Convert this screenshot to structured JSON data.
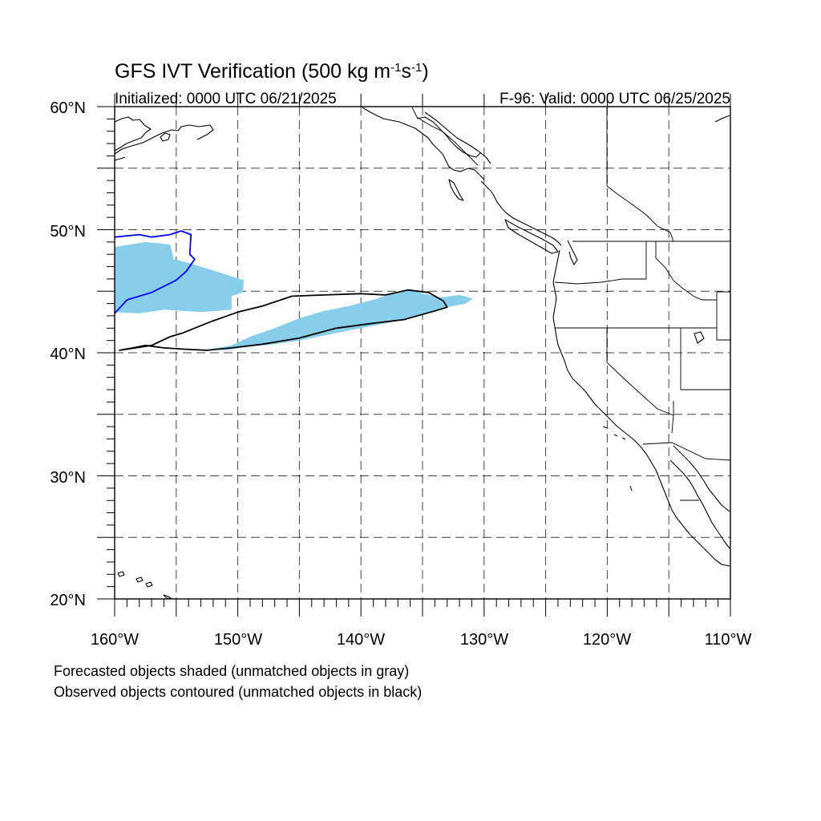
{
  "header": {
    "title_main": "GFS IVT Verification (500 kg m",
    "title_sup1": "-1",
    "title_mid": "s",
    "title_sup2": "-1",
    "title_end": ")",
    "initialized": "Initialized: 0000 UTC 06/21/2025",
    "valid": "F-96: Valid: 0000 UTC 06/25/2025"
  },
  "axes": {
    "lat_labels": [
      "60°N",
      "50°N",
      "40°N",
      "30°N",
      "20°N"
    ],
    "lon_labels": [
      "160°W",
      "150°W",
      "140°W",
      "130°W",
      "120°W",
      "110°W"
    ]
  },
  "legend": {
    "forecast_note": "Forecasted objects shaded (unmatched objects in gray)",
    "observed_note": "Observed objects contoured (unmatched objects in black)"
  },
  "colors": {
    "forecast_fill": "#87ceeb",
    "matched_contour": "#0000ff",
    "unmatched_contour": "#000000"
  },
  "map": {
    "domain": {
      "lon_min": -160,
      "lon_max": -110,
      "lat_min": 20,
      "lat_max": 60
    },
    "forecast_objects": [
      {
        "id": "fc-west",
        "matched": true,
        "points": [
          [
            -160,
            48.6
          ],
          [
            -157.5,
            49.0
          ],
          [
            -155.5,
            48.8
          ],
          [
            -155.2,
            47.6
          ],
          [
            -154,
            47.3
          ],
          [
            -152,
            46.7
          ],
          [
            -150.5,
            46.2
          ],
          [
            -149.5,
            45.9
          ],
          [
            -149.6,
            44.9
          ],
          [
            -150.5,
            44.6
          ],
          [
            -150.5,
            43.5
          ],
          [
            -153,
            43.3
          ],
          [
            -156,
            43.5
          ],
          [
            -158,
            43.2
          ],
          [
            -160,
            43.3
          ]
        ]
      },
      {
        "id": "fc-east",
        "matched": true,
        "points": [
          [
            -152.2,
            40.3
          ],
          [
            -150.5,
            40.6
          ],
          [
            -149,
            41.3
          ],
          [
            -147,
            42.0
          ],
          [
            -145,
            42.8
          ],
          [
            -143,
            43.4
          ],
          [
            -141,
            43.8
          ],
          [
            -139,
            44.3
          ],
          [
            -137.5,
            44.8
          ],
          [
            -136,
            45.2
          ],
          [
            -135,
            44.8
          ],
          [
            -133.5,
            44.5
          ],
          [
            -132,
            44.7
          ],
          [
            -130.9,
            44.4
          ],
          [
            -131.5,
            44.0
          ],
          [
            -133.5,
            43.6
          ],
          [
            -136,
            42.8
          ],
          [
            -138,
            42.4
          ],
          [
            -140,
            42.0
          ],
          [
            -143,
            41.4
          ],
          [
            -145,
            41.0
          ],
          [
            -147,
            40.7
          ],
          [
            -149,
            40.5
          ],
          [
            -151,
            40.2
          ]
        ]
      }
    ],
    "observed_objects": [
      {
        "id": "obs-blue",
        "matched": true,
        "points": [
          [
            -160,
            49.4
          ],
          [
            -158,
            49.6
          ],
          [
            -157,
            49.4
          ],
          [
            -155.5,
            49.6
          ],
          [
            -154.6,
            49.9
          ],
          [
            -153.8,
            49.6
          ],
          [
            -153.9,
            48.0
          ],
          [
            -153.5,
            47.6
          ],
          [
            -154.2,
            46.6
          ],
          [
            -155.0,
            45.9
          ],
          [
            -157.0,
            44.9
          ],
          [
            -159.0,
            44.3
          ],
          [
            -160,
            43.2
          ]
        ]
      },
      {
        "id": "obs-black",
        "matched": false,
        "points": [
          [
            -159.6,
            40.2
          ],
          [
            -157,
            40.6
          ],
          [
            -155.5,
            41.3
          ],
          [
            -154.5,
            41.6
          ],
          [
            -153.5,
            42.0
          ],
          [
            -152,
            42.6
          ],
          [
            -150,
            43.3
          ],
          [
            -148,
            43.8
          ],
          [
            -145.6,
            44.6
          ],
          [
            -143,
            44.7
          ],
          [
            -140,
            44.8
          ],
          [
            -138,
            44.7
          ],
          [
            -136.2,
            45.1
          ],
          [
            -134.5,
            44.9
          ],
          [
            -133.3,
            44.2
          ],
          [
            -133.0,
            43.7
          ],
          [
            -134,
            43.4
          ],
          [
            -136.5,
            42.7
          ],
          [
            -139,
            42.4
          ],
          [
            -142,
            42.0
          ],
          [
            -145,
            41.2
          ],
          [
            -148,
            40.7
          ],
          [
            -150.5,
            40.4
          ],
          [
            -152.5,
            40.2
          ],
          [
            -154.5,
            40.3
          ],
          [
            -156,
            40.4
          ],
          [
            -157.5,
            40.6
          ],
          [
            -158.5,
            40.4
          ]
        ]
      }
    ]
  }
}
